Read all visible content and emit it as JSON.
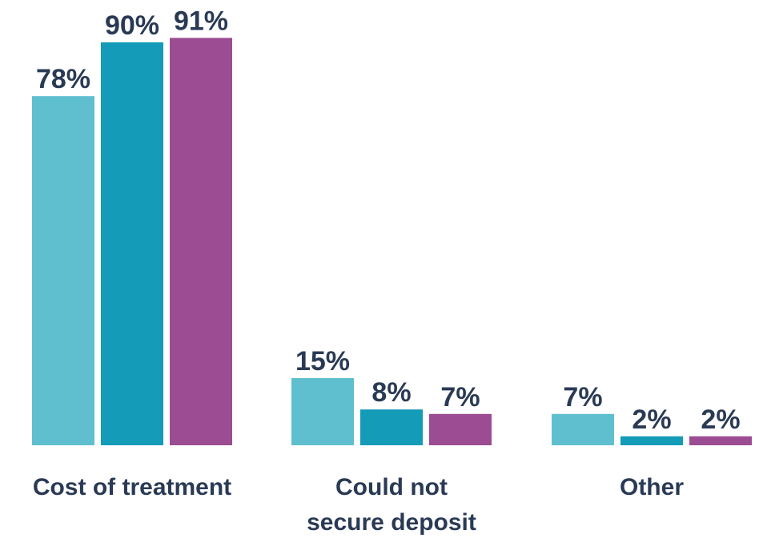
{
  "chart_data": {
    "type": "bar",
    "categories": [
      [
        "Cost of treatment"
      ],
      [
        "Could not",
        "secure deposit"
      ],
      [
        "Other"
      ]
    ],
    "series": [
      {
        "values": [
          78,
          15,
          7
        ],
        "labels": [
          "78%",
          "15%",
          "7%"
        ],
        "color": "#5fbfcf"
      },
      {
        "values": [
          90,
          8,
          2
        ],
        "labels": [
          "90%",
          "8%",
          "2%"
        ],
        "color": "#139bb8"
      },
      {
        "values": [
          91,
          7,
          2
        ],
        "labels": [
          "91%",
          "7%",
          "2%"
        ],
        "color": "#9c4c92"
      }
    ],
    "ylim": [
      0,
      100
    ],
    "grid": false,
    "legend": "none"
  }
}
